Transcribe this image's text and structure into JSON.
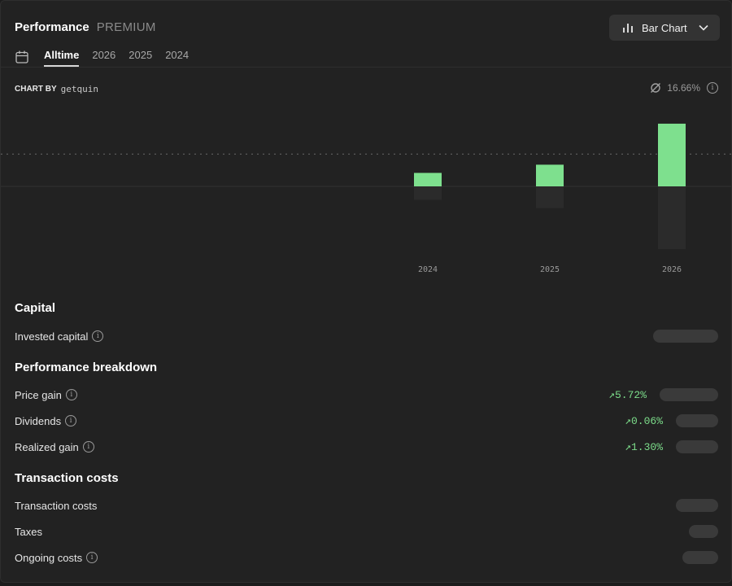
{
  "header": {
    "title": "Performance",
    "badge": "PREMIUM"
  },
  "chart_selector": {
    "label": "Bar Chart",
    "icon": "bar-chart-icon"
  },
  "tabs": [
    {
      "label": "Alltime",
      "active": true
    },
    {
      "label": "2026",
      "active": false
    },
    {
      "label": "2025",
      "active": false
    },
    {
      "label": "2024",
      "active": false
    }
  ],
  "chart_by": {
    "label": "CHART BY",
    "brand": "getquin"
  },
  "average": {
    "value": "16.66%",
    "icon": "average-icon"
  },
  "chart_data": {
    "type": "bar",
    "categories": [
      "2024",
      "2025",
      "2026"
    ],
    "series": [
      {
        "values": [
          2.3,
          3.7,
          10.7
        ],
        "color": "#7ee08e"
      },
      {
        "values": [
          -2.3,
          -3.7,
          -10.7
        ],
        "color": "#2b2b2b"
      }
    ],
    "ylim": [
      -11,
      11
    ],
    "average_line": 5.5,
    "grid": false
  },
  "capital": {
    "title": "Capital",
    "rows": [
      {
        "label": "Invested capital",
        "value": ""
      }
    ]
  },
  "breakdown": {
    "title": "Performance breakdown",
    "rows": [
      {
        "label": "Price gain",
        "change": "↗5.72%"
      },
      {
        "label": "Dividends",
        "change": "↗0.06%"
      },
      {
        "label": "Realized gain",
        "change": "↗1.30%"
      }
    ]
  },
  "costs": {
    "title": "Transaction costs",
    "rows": [
      {
        "label": "Transaction costs"
      },
      {
        "label": "Taxes"
      },
      {
        "label": "Ongoing costs"
      }
    ]
  },
  "colors": {
    "positive": "#7cdc8a",
    "bar_positive": "#7ee08e",
    "bar_negative": "#2b2b2b",
    "background": "#222222"
  }
}
